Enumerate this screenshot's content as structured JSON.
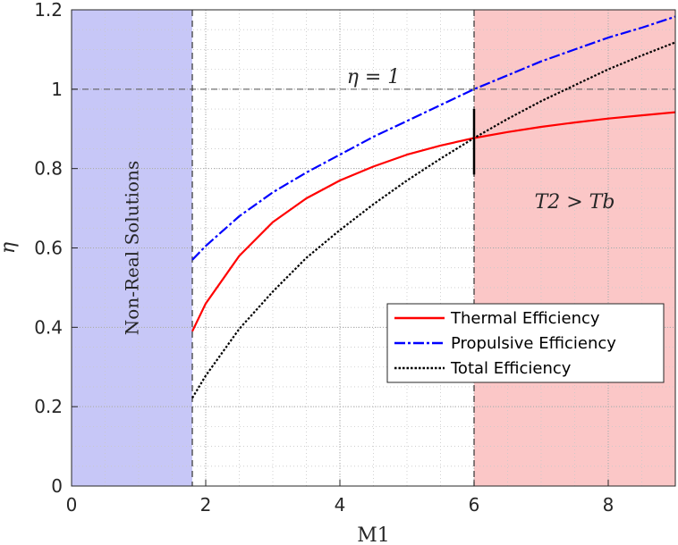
{
  "chart_data": {
    "type": "line",
    "xlabel": "M1",
    "ylabel": "η",
    "xlim": [
      0,
      9
    ],
    "ylim": [
      0,
      1.2
    ],
    "xticks": [
      "0",
      "2",
      "4",
      "6",
      "8"
    ],
    "yticks": [
      "0",
      "0.2",
      "0.4",
      "0.6",
      "0.8",
      "1",
      "1.2"
    ],
    "grid": true,
    "minor_grid": true,
    "legend_position": "lower-right",
    "shaded_regions": [
      {
        "x": [
          0,
          1.8
        ],
        "color": "#c7c7f7",
        "label": "Non-Real Solutions"
      },
      {
        "x": [
          6,
          9
        ],
        "color": "#fbc7c7",
        "label": "T2 > Tb"
      }
    ],
    "reference_lines": [
      {
        "orientation": "horizontal",
        "value": 1,
        "label": "η = 1"
      },
      {
        "orientation": "vertical",
        "value": 1.8
      },
      {
        "orientation": "vertical",
        "value": 6
      }
    ],
    "x": [
      1.8,
      2.0,
      2.5,
      3.0,
      3.5,
      4.0,
      4.5,
      5.0,
      5.5,
      6.0,
      6.5,
      7.0,
      7.5,
      8.0,
      8.5,
      9.0
    ],
    "series": [
      {
        "name": "Thermal Efficiency",
        "color": "#ff0000",
        "dash": "solid",
        "values": [
          0.39,
          0.46,
          0.58,
          0.665,
          0.725,
          0.77,
          0.805,
          0.835,
          0.858,
          0.877,
          0.892,
          0.905,
          0.916,
          0.926,
          0.934,
          0.942
        ]
      },
      {
        "name": "Propulsive Efficiency",
        "color": "#0000ff",
        "dash": "dashdot",
        "values": [
          0.57,
          0.605,
          0.68,
          0.74,
          0.79,
          0.835,
          0.88,
          0.92,
          0.96,
          1.0,
          1.035,
          1.07,
          1.1,
          1.13,
          1.155,
          1.183
        ]
      },
      {
        "name": "Total Efficiency",
        "color": "#000000",
        "dash": "dotted",
        "values": [
          0.222,
          0.278,
          0.396,
          0.49,
          0.575,
          0.645,
          0.71,
          0.77,
          0.825,
          0.877,
          0.925,
          0.97,
          1.01,
          1.05,
          1.085,
          1.118
        ]
      }
    ]
  }
}
